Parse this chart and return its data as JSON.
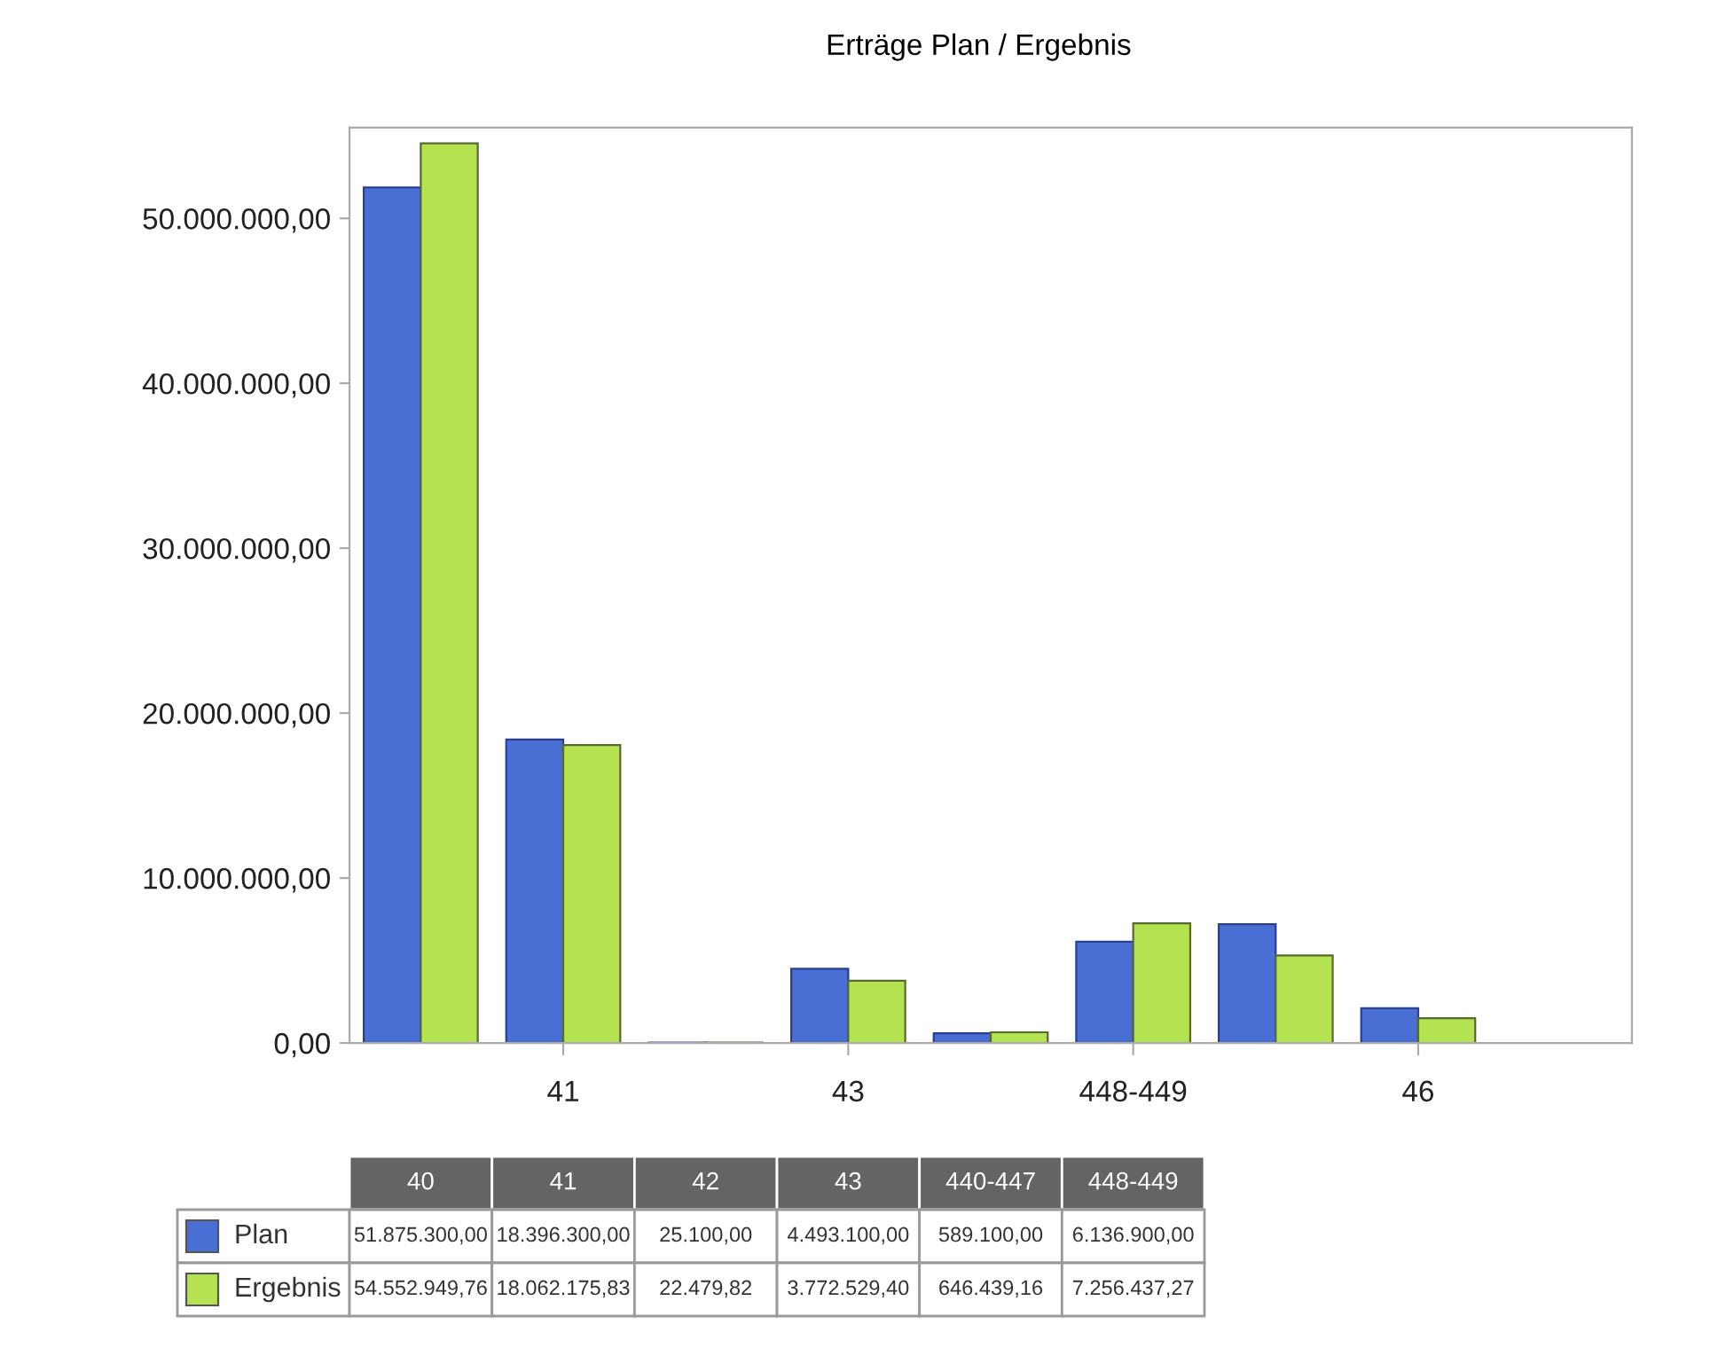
{
  "chart_data": {
    "type": "bar",
    "title": "Erträge Plan / Ergebnis",
    "categories": [
      "40",
      "41",
      "42",
      "43",
      "440-447",
      "448-449",
      null,
      "46",
      null
    ],
    "series": [
      {
        "name": "Plan",
        "color": "#4a6fd4",
        "values": [
          51875300,
          18396300,
          25100,
          4493100,
          589100,
          6136900,
          7200000,
          2100000,
          null
        ],
        "value_labels": [
          "51.875.300,00",
          "18.396.300,00",
          "25.100,00",
          "4.493.100,00",
          "589.100,00",
          "6.136.900,00",
          null,
          null,
          null
        ]
      },
      {
        "name": "Ergebnis",
        "color": "#b5e250",
        "values": [
          54552949.76,
          18062175.83,
          22479.82,
          3772529.4,
          646439.16,
          7256437.27,
          5300000,
          1500000,
          null
        ],
        "value_labels": [
          "54.552.949,76",
          "18.062.175,83",
          "22.479,82",
          "3.772.529,40",
          "646.439,16",
          "7.256.437,27",
          null,
          null,
          null
        ]
      }
    ],
    "ylim": [
      0,
      55500000
    ],
    "yticks": [
      {
        "value": 0,
        "label": "0,00"
      },
      {
        "value": 10000000,
        "label": "10.000.000,00"
      },
      {
        "value": 20000000,
        "label": "20.000.000,00"
      },
      {
        "value": 30000000,
        "label": "30.000.000,00"
      },
      {
        "value": 40000000,
        "label": "40.000.000,00"
      },
      {
        "value": 50000000,
        "label": "50.000.000,00"
      }
    ],
    "grid": false,
    "legend": "bottom"
  }
}
